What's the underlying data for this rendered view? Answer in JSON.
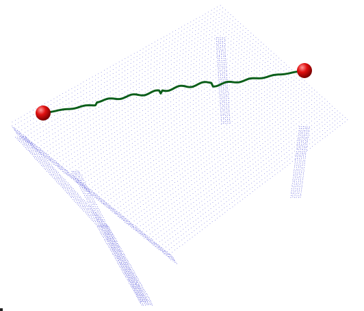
{
  "scene": {
    "background_color": "#ffffff",
    "point_cloud": {
      "object": "table",
      "point_color": "#2a2ad0"
    },
    "path": {
      "color": "#0b5e1a"
    },
    "endpoints": {
      "color": "#e01010",
      "highlight_color": "#ff9a9a",
      "count": 2
    }
  }
}
